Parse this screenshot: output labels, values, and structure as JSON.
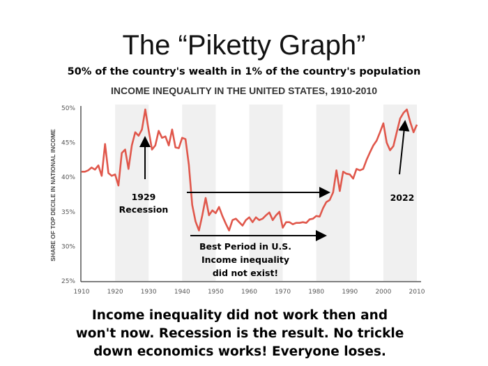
{
  "header": {
    "title": "The “Piketty Graph”",
    "subtitle": "50% of the country's wealth in 1% of the country's population"
  },
  "annotations": {
    "recession_year": "1929",
    "recession_label": "Recession",
    "best_period": [
      "Best Period in U.S.",
      "Income inequality",
      "did not exist!"
    ],
    "year_2022": "2022"
  },
  "footer": {
    "lines": [
      "Income inequality did not work then and",
      "won't now. Recession is the result. No trickle",
      "down economics works! Everyone loses."
    ]
  },
  "chart_data": {
    "type": "line",
    "title": "INCOME INEQUALITY IN THE UNITED STATES, 1910-2010",
    "xlabel": "",
    "ylabel": "SHARE OF TOP DECILE IN NATIONAL INCOME",
    "xlim": [
      1910,
      2010
    ],
    "ylim": [
      25,
      50
    ],
    "xticks": [
      "1910",
      "1920",
      "1930",
      "1940",
      "1950",
      "1960",
      "1970",
      "1980",
      "1990",
      "2000",
      "2010"
    ],
    "yticks": [
      "25%",
      "30%",
      "35%",
      "40%",
      "45%",
      "50%"
    ],
    "shaded_decades": [
      [
        1920,
        1930
      ],
      [
        1940,
        1950
      ],
      [
        1960,
        1970
      ],
      [
        1980,
        1990
      ],
      [
        2000,
        2010
      ]
    ],
    "grid": false,
    "line_color": "#e0574b",
    "shade_color": "#f0f0f0",
    "x": [
      1910,
      1911,
      1912,
      1913,
      1914,
      1915,
      1916,
      1917,
      1918,
      1919,
      1920,
      1921,
      1922,
      1923,
      1924,
      1925,
      1926,
      1927,
      1928,
      1929,
      1930,
      1931,
      1932,
      1933,
      1934,
      1935,
      1936,
      1937,
      1938,
      1939,
      1940,
      1941,
      1942,
      1943,
      1944,
      1945,
      1946,
      1947,
      1948,
      1949,
      1950,
      1951,
      1952,
      1953,
      1954,
      1955,
      1956,
      1957,
      1958,
      1959,
      1960,
      1961,
      1962,
      1963,
      1964,
      1965,
      1966,
      1967,
      1968,
      1969,
      1970,
      1971,
      1972,
      1973,
      1974,
      1975,
      1976,
      1977,
      1978,
      1979,
      1980,
      1981,
      1982,
      1983,
      1984,
      1985,
      1986,
      1987,
      1988,
      1989,
      1990,
      1991,
      1992,
      1993,
      1994,
      1995,
      1996,
      1997,
      1998,
      1999,
      2000,
      2001,
      2002,
      2003,
      2004,
      2005,
      2006,
      2007,
      2008,
      2009,
      2010
    ],
    "y": [
      40.8,
      40.8,
      41.0,
      41.4,
      41.1,
      41.7,
      40.2,
      44.8,
      40.6,
      40.2,
      40.4,
      38.8,
      43.5,
      44.0,
      41.2,
      44.6,
      46.5,
      46.0,
      46.9,
      49.8,
      46.8,
      44.0,
      44.6,
      46.7,
      45.7,
      45.9,
      44.6,
      46.9,
      44.3,
      44.2,
      45.7,
      45.5,
      41.8,
      36.0,
      33.6,
      32.3,
      34.5,
      37.0,
      34.5,
      35.2,
      34.8,
      35.7,
      34.4,
      33.3,
      32.3,
      33.8,
      34.0,
      33.5,
      33.0,
      33.8,
      34.2,
      33.5,
      34.2,
      33.8,
      34.0,
      34.5,
      34.9,
      33.8,
      34.5,
      35.0,
      32.7,
      33.5,
      33.5,
      33.2,
      33.4,
      33.4,
      33.5,
      33.4,
      33.9,
      34.0,
      34.4,
      34.3,
      35.5,
      36.4,
      36.7,
      37.8,
      41.0,
      38.0,
      40.8,
      40.5,
      40.4,
      39.8,
      41.2,
      41.0,
      41.2,
      42.5,
      43.6,
      44.6,
      45.3,
      46.5,
      47.8,
      45.0,
      43.9,
      44.5,
      46.5,
      48.5,
      49.3,
      49.8,
      48.0,
      46.5,
      47.6
    ]
  }
}
